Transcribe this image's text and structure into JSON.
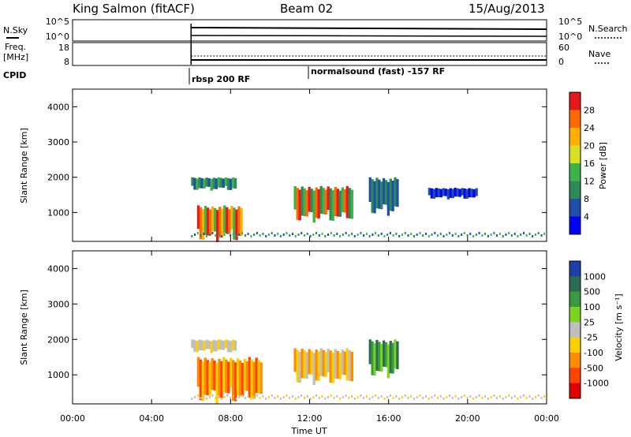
{
  "header": {
    "station": "King Salmon (fitACF)",
    "beam": "Beam 02",
    "date": "15/Aug/2013"
  },
  "top_panels": {
    "nsky_label": "N.Sky",
    "nsky_ticks": [
      "10^5",
      "10^0"
    ],
    "nsearch_label": "N.Search",
    "nsearch_ticks": [
      "10^5",
      "10^0"
    ],
    "freq_label": "Freq.",
    "freq_unit": "[MHz]",
    "freq_ticks": [
      "18",
      "8"
    ],
    "nave_label": "Nave",
    "nave_ticks": [
      "60",
      "0"
    ],
    "cpid_label": "CPID",
    "cpid_items": [
      "rbsp 200 RF",
      "normalsound (fast) -157 RF"
    ]
  },
  "chart_data": [
    {
      "type": "heatmap",
      "name": "power",
      "ylabel": "Slant Range [km]",
      "yticks": [
        "4000",
        "3000",
        "2000",
        "1000"
      ],
      "ylim": [
        180,
        4500
      ],
      "xlim": [
        0,
        24
      ],
      "xticks": [
        "00:00",
        "04:00",
        "08:00",
        "12:00",
        "16:00",
        "20:00",
        "00:00"
      ],
      "colorbar": {
        "label": "Power [dB]",
        "ticks": [
          "28",
          "24",
          "20",
          "16",
          "12",
          "8",
          "4"
        ],
        "colors": [
          "#e41a1c",
          "#ff6b00",
          "#ffb000",
          "#d9e021",
          "#3cb44b",
          "#2e8b57",
          "#1f4fa8",
          "#0000ff"
        ]
      },
      "echo_regions": [
        {
          "t0": 6.0,
          "t1": 8.3,
          "r0": 1650,
          "r1": 2000,
          "level": "8-16 dB"
        },
        {
          "t0": 6.3,
          "t1": 8.6,
          "r0": 250,
          "r1": 1200,
          "level": "12-28 dB"
        },
        {
          "t0": 11.2,
          "t1": 14.2,
          "r0": 800,
          "r1": 1750,
          "level": "8-24 dB"
        },
        {
          "t0": 15.0,
          "t1": 16.5,
          "r0": 1000,
          "r1": 2000,
          "level": "4-12 dB"
        },
        {
          "t0": 18.0,
          "t1": 20.5,
          "r0": 1400,
          "r1": 1700,
          "level": "4-8 dB"
        }
      ]
    },
    {
      "type": "heatmap",
      "name": "velocity",
      "ylabel": "Slant Range [km]",
      "yticks": [
        "4000",
        "3000",
        "2000",
        "1000"
      ],
      "ylim": [
        180,
        4500
      ],
      "xlim": [
        0,
        24
      ],
      "xlabel": "Time UT",
      "xticks": [
        "00:00",
        "04:00",
        "08:00",
        "12:00",
        "16:00",
        "20:00",
        "00:00"
      ],
      "colorbar": {
        "label": "Velocity [m s⁻¹]",
        "ticks": [
          "1000",
          "500",
          "100",
          "25",
          "-25",
          "-100",
          "-500",
          "-1000"
        ],
        "colors": [
          "#1f3fa8",
          "#2e6b57",
          "#3a9a40",
          "#7ed321",
          "#bfbfbf",
          "#ffd000",
          "#ff8c00",
          "#ff4500",
          "#e00000"
        ]
      },
      "echo_regions": [
        {
          "t0": 6.0,
          "t1": 8.3,
          "r0": 1650,
          "r1": 2000,
          "level": "ground scatter"
        },
        {
          "t0": 6.3,
          "t1": 9.6,
          "r0": 300,
          "r1": 1500,
          "level": "-100 to -500 m/s"
        },
        {
          "t0": 11.2,
          "t1": 14.2,
          "r0": 800,
          "r1": 1750,
          "level": "-100 to -500 m/s"
        },
        {
          "t0": 15.0,
          "t1": 16.5,
          "r0": 1000,
          "r1": 2000,
          "level": "25 to 500 m/s"
        }
      ]
    }
  ]
}
